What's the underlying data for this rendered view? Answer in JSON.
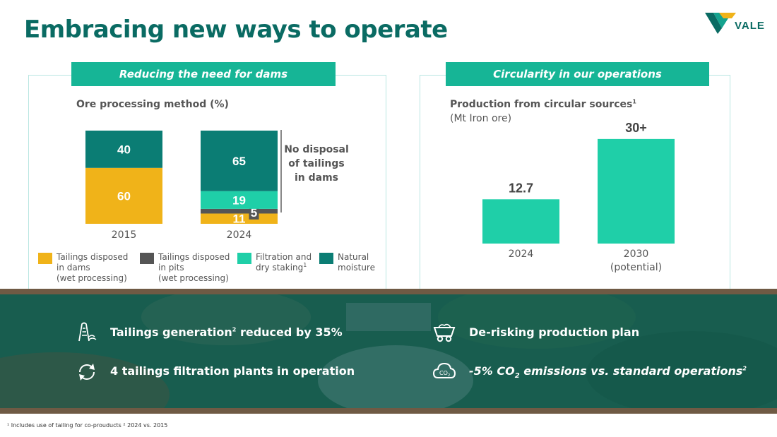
{
  "title": "Embracing new ways to operate",
  "brand": {
    "name": "VALE",
    "color_primary": "#0a6b63",
    "color_accent": "#f0b319"
  },
  "left_panel": {
    "header": "Reducing the need for dams",
    "chart_title": "Ore processing method (%)",
    "annotation": [
      "No disposal",
      "of tailings",
      "in dams"
    ]
  },
  "right_panel": {
    "header": "Circularity in our operations",
    "chart_title": "Production from circular sources",
    "chart_title_sup": "1",
    "chart_subtitle": "(Mt Iron ore)"
  },
  "chart_data": [
    {
      "type": "bar",
      "stacked": true,
      "title": "Ore processing method (%)",
      "categories": [
        "2015",
        "2024"
      ],
      "series": [
        {
          "name": "Tailings disposed in dams (wet processing)",
          "color": "#f0b319",
          "values": [
            60,
            11
          ]
        },
        {
          "name": "Tailings disposed in pits (wet processing)",
          "color": "#555555",
          "values": [
            0,
            5
          ]
        },
        {
          "name": "Filtration and dry staking",
          "color": "#1fcfa8",
          "values": [
            0,
            19
          ]
        },
        {
          "name": "Natural moisture",
          "color": "#0b7d74",
          "values": [
            40,
            65
          ]
        }
      ],
      "legend": [
        {
          "lines": [
            "Tailings disposed",
            "in dams",
            "(wet processing)"
          ],
          "color": "#f0b319"
        },
        {
          "lines": [
            "Tailings disposed",
            "in pits",
            "(wet processing)"
          ],
          "color": "#555555"
        },
        {
          "lines": [
            "Filtration and",
            "dry staking"
          ],
          "sup": "1",
          "color": "#1fcfa8"
        },
        {
          "lines": [
            "Natural",
            "moisture"
          ],
          "color": "#0b7d74"
        }
      ],
      "ylim": [
        0,
        100
      ]
    },
    {
      "type": "bar",
      "title": "Production from circular sources",
      "ylabel": "(Mt Iron ore)",
      "categories": [
        "2024",
        "2030"
      ],
      "category_notes": [
        "",
        "(potential)"
      ],
      "values": [
        12.7,
        30
      ],
      "labels": [
        "12.7",
        "30+"
      ],
      "color": "#1fcfa8",
      "ylim": [
        0,
        32
      ]
    }
  ],
  "kpis": [
    {
      "icon": "tailings-icon",
      "text": "Tailings generation",
      "sup": "2",
      "text2": " reduced by 35%"
    },
    {
      "icon": "cycle-icon",
      "text": "4 tailings filtration plants in operation"
    },
    {
      "icon": "mine-cart-icon",
      "text": "De-risking production plan"
    },
    {
      "icon": "co2-cloud-icon",
      "text": "-5% CO",
      "sub": "2",
      "text2": " emissions vs.  standard operations",
      "sup": "2"
    }
  ],
  "footnote": "¹ Includes use of tailing for co-prouducts ² 2024 vs. 2015"
}
